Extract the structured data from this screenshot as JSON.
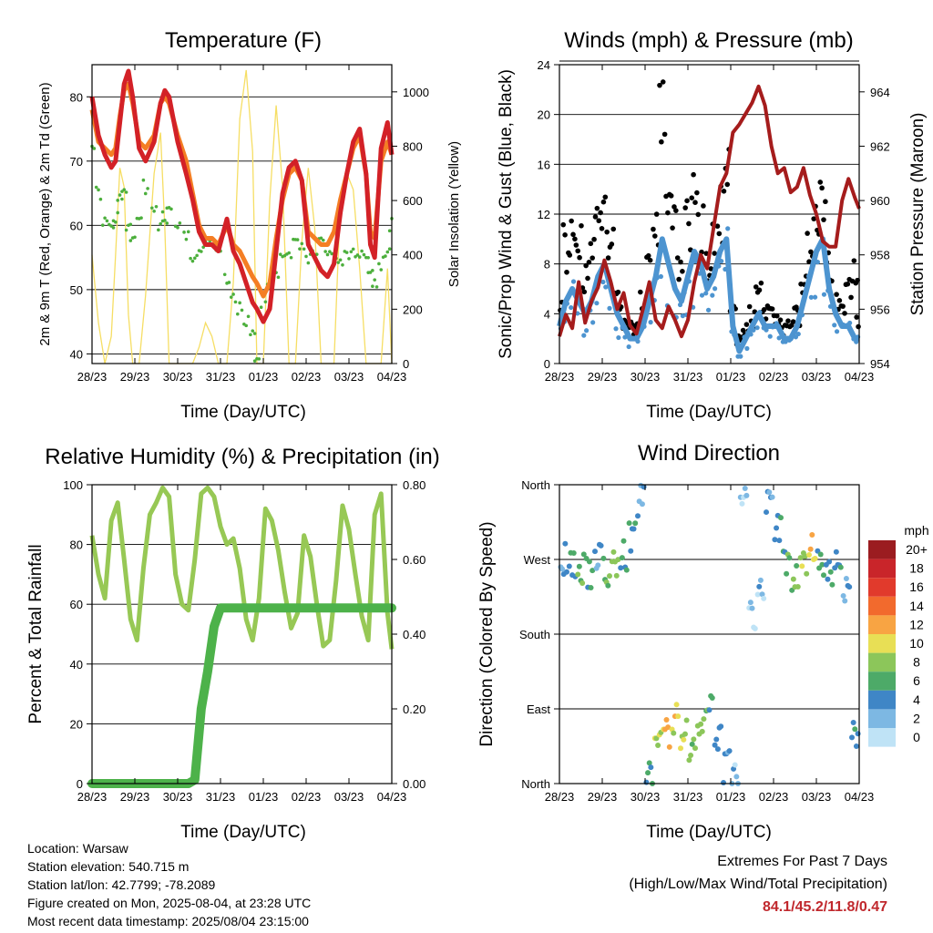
{
  "colors": {
    "temp_2m": "#d32127",
    "temp_9m": "#f47e24",
    "dewpoint": "#4caf3c",
    "solar": "#f6de64",
    "wind": "#4d94d0",
    "gust": "#000000",
    "pressure": "#a51c1c",
    "rh": "#97c855",
    "precip": "#4db24a",
    "extremes_text": "#c0282d"
  },
  "x_ticks": [
    "28/23",
    "29/23",
    "30/23",
    "31/23",
    "01/23",
    "02/23",
    "03/23",
    "04/23"
  ],
  "x_label": "Time (Day/UTC)",
  "panels": {
    "temperature": {
      "title": "Temperature (F)",
      "ylabel_left": "2m & 9m T (Red, Orange) & 2m Td (Green)",
      "ylabel_right": "Solar Insolation (Yellow)",
      "y_ticks": [
        "40",
        "50",
        "60",
        "70",
        "80"
      ],
      "y2_ticks": [
        "0",
        "200",
        "400",
        "600",
        "800",
        "1000"
      ]
    },
    "winds": {
      "title": "Winds (mph) & Pressure (mb)",
      "ylabel_left": "Sonic/Prop Wind & Gust (Blue, Black)",
      "ylabel_right": "Station Pressure (Maroon)",
      "y_ticks": [
        "0",
        "4",
        "8",
        "12",
        "16",
        "20",
        "24"
      ],
      "y2_ticks": [
        "954",
        "956",
        "958",
        "960",
        "962",
        "964"
      ]
    },
    "humidity": {
      "title": "Relative Humidity (%) & Precipitation (in)",
      "ylabel_left": "Percent & Total Rainfall",
      "y_ticks": [
        "0",
        "20",
        "40",
        "60",
        "80",
        "100"
      ],
      "y2_ticks": [
        "0.00",
        "0.20",
        "0.40",
        "0.60",
        "0.80"
      ]
    },
    "direction": {
      "title": "Wind Direction",
      "ylabel_left": "Direction (Colored By Speed)",
      "y_ticks": [
        "North",
        "East",
        "South",
        "West",
        "North"
      ],
      "legend_title": "mph",
      "legend_labels": [
        "20+",
        "18",
        "16",
        "14",
        "12",
        "10",
        "8",
        "6",
        "4",
        "2",
        "0"
      ],
      "legend_colors": [
        "#9b1c20",
        "#c9252a",
        "#e13a2c",
        "#f26a2d",
        "#f8a443",
        "#e8df55",
        "#8cc65a",
        "#4daa68",
        "#3f86c6",
        "#7db8e3",
        "#bfe3f6"
      ]
    }
  },
  "info": {
    "location": "Location: Warsaw",
    "elevation": "Station elevation: 540.715 m",
    "latlon": "Station lat/lon: 42.7799; -78.2089",
    "created": "Figure created on Mon, 2025-08-04, at 23:28 UTC",
    "timestamp": "Most recent data timestamp: 2025/08/04 23:15:00"
  },
  "extremes": {
    "title": "Extremes For Past 7 Days",
    "subtitle": "(High/Low/Max Wind/Total Precipitation)",
    "values": "84.1/45.2/11.8/0.47"
  },
  "chart_data": [
    {
      "type": "line",
      "title": "Temperature (F)",
      "xlabel": "Time (Day/UTC)",
      "ylabel": "2m & 9m T (Red, Orange) & 2m Td (Green)",
      "y2label": "Solar Insolation (Yellow)",
      "xlim": [
        0,
        7
      ],
      "ylim": [
        38.5,
        85
      ],
      "y2lim": [
        0,
        1100
      ],
      "x": [
        0,
        0.15,
        0.3,
        0.45,
        0.55,
        0.65,
        0.75,
        0.85,
        0.95,
        1.1,
        1.25,
        1.45,
        1.6,
        1.7,
        1.8,
        2.0,
        2.2,
        2.35,
        2.5,
        2.65,
        2.8,
        2.95,
        3.15,
        3.3,
        3.45,
        3.6,
        3.75,
        3.85,
        4.0,
        4.15,
        4.3,
        4.45,
        4.6,
        4.75,
        4.9,
        5.05,
        5.2,
        5.35,
        5.5,
        5.65,
        5.8,
        5.95,
        6.1,
        6.25,
        6.4,
        6.5,
        6.6,
        6.75,
        6.9,
        7.0
      ],
      "series": [
        {
          "name": "2m T",
          "values": [
            80,
            74,
            71,
            69,
            70,
            76,
            82,
            84,
            80,
            72,
            70,
            73,
            79,
            81,
            80,
            73,
            68,
            64,
            59,
            57,
            57,
            56,
            61,
            56,
            54,
            51,
            48,
            47,
            45,
            47,
            56,
            65,
            69,
            70,
            67,
            57,
            55,
            53,
            52,
            54,
            62,
            68,
            73,
            75,
            68,
            57,
            55,
            72,
            76,
            71
          ]
        },
        {
          "name": "9m T",
          "values": [
            78,
            73,
            72,
            71,
            72,
            77,
            81,
            82,
            79,
            73,
            72,
            74,
            79,
            80,
            79,
            74,
            70,
            65,
            60,
            58,
            58,
            57,
            60,
            57,
            56,
            54,
            52,
            51,
            49,
            51,
            58,
            64,
            68,
            69,
            67,
            59,
            58,
            57,
            57,
            59,
            64,
            68,
            72,
            74,
            68,
            59,
            58,
            70,
            73,
            71
          ]
        },
        {
          "name": "2m Td",
          "values": [
            73,
            65,
            61,
            60,
            61,
            64,
            65,
            60,
            58,
            61,
            66,
            62,
            60,
            61,
            62,
            60,
            58,
            55,
            55,
            57,
            57,
            56,
            52,
            49,
            47,
            45,
            43,
            40,
            48,
            51,
            53,
            55,
            56,
            58,
            57,
            55,
            55,
            57,
            56,
            55,
            54,
            55,
            56,
            56,
            55,
            52,
            51,
            54,
            56,
            60
          ]
        },
        {
          "name": "Solar",
          "values": [
            400,
            150,
            0,
            100,
            400,
            720,
            650,
            180,
            0,
            0,
            250,
            700,
            850,
            500,
            0,
            0,
            0,
            0,
            60,
            150,
            100,
            0,
            0,
            300,
            900,
            1080,
            780,
            0,
            0,
            600,
            950,
            650,
            0,
            0,
            450,
            720,
            500,
            0,
            0,
            0,
            600,
            700,
            640,
            350,
            0,
            0,
            0,
            0,
            350,
            0
          ]
        }
      ]
    },
    {
      "type": "scatter",
      "title": "Winds (mph) & Pressure (mb)",
      "xlabel": "Time (Day/UTC)",
      "ylabel": "Sonic/Prop Wind & Gust (Blue, Black)",
      "y2label": "Station Pressure (Maroon)",
      "xlim": [
        0,
        7
      ],
      "ylim": [
        0,
        24
      ],
      "y2lim": [
        954,
        965
      ],
      "x": [
        0,
        0.15,
        0.3,
        0.45,
        0.6,
        0.75,
        0.9,
        1.05,
        1.2,
        1.35,
        1.5,
        1.65,
        1.8,
        1.95,
        2.1,
        2.25,
        2.4,
        2.55,
        2.7,
        2.85,
        3.0,
        3.15,
        3.3,
        3.45,
        3.6,
        3.75,
        3.9,
        4.05,
        4.2,
        4.35,
        4.5,
        4.65,
        4.8,
        4.95,
        5.1,
        5.25,
        5.4,
        5.55,
        5.7,
        5.85,
        6.0,
        6.15,
        6.3,
        6.45,
        6.6,
        6.75,
        6.9,
        7.0
      ],
      "series": [
        {
          "name": "Wind",
          "values": [
            3,
            5,
            6,
            5,
            4,
            5,
            7,
            8,
            6,
            4,
            3,
            2,
            2,
            3,
            5,
            7,
            10,
            8,
            6,
            5,
            7,
            9,
            8,
            6,
            7,
            9,
            10,
            3,
            1,
            2,
            3,
            4,
            3,
            3,
            3,
            2,
            2,
            3,
            5,
            7,
            9,
            10,
            6,
            4,
            3,
            3,
            2,
            2
          ]
        },
        {
          "name": "Gust",
          "values": [
            6,
            10,
            12,
            10,
            7,
            9,
            12,
            14,
            10,
            6,
            4,
            3,
            3,
            5,
            8,
            12,
            20,
            15,
            11,
            8,
            12,
            14,
            12,
            9,
            10,
            13,
            15,
            6,
            2,
            3,
            4,
            6,
            5,
            5,
            4,
            3,
            3,
            4,
            7,
            10,
            12,
            13,
            9,
            6,
            5,
            6,
            8,
            4
          ]
        },
        {
          "name": "Pressure",
          "values": [
            955.0,
            955.8,
            955.3,
            957.0,
            955.5,
            956.3,
            956.8,
            957.8,
            957.0,
            956.0,
            956.6,
            955.4,
            955.1,
            956.0,
            957.0,
            955.6,
            955.3,
            956.1,
            955.6,
            955.0,
            955.6,
            957.0,
            958.0,
            957.5,
            959.0,
            960.5,
            961.0,
            962.5,
            962.8,
            963.2,
            963.6,
            964.2,
            963.5,
            962.0,
            961.0,
            961.2,
            960.3,
            960.5,
            961.2,
            960.2,
            959.5,
            958.5,
            958.3,
            958.3,
            960.0,
            960.8,
            960.1,
            959.7
          ]
        }
      ]
    },
    {
      "type": "line",
      "title": "Relative Humidity (%) & Precipitation (in)",
      "xlabel": "Time (Day/UTC)",
      "ylabel": "Percent & Total Rainfall",
      "xlim": [
        0,
        7
      ],
      "ylim": [
        0,
        100
      ],
      "y2lim": [
        0,
        0.8
      ],
      "x": [
        0,
        0.15,
        0.3,
        0.45,
        0.6,
        0.75,
        0.9,
        1.05,
        1.2,
        1.35,
        1.5,
        1.65,
        1.8,
        1.95,
        2.1,
        2.25,
        2.4,
        2.55,
        2.7,
        2.85,
        3.0,
        3.15,
        3.3,
        3.45,
        3.6,
        3.75,
        3.9,
        4.05,
        4.2,
        4.35,
        4.5,
        4.65,
        4.8,
        4.95,
        5.1,
        5.25,
        5.4,
        5.55,
        5.7,
        5.85,
        6.0,
        6.15,
        6.3,
        6.45,
        6.6,
        6.75,
        6.9,
        7.0
      ],
      "series": [
        {
          "name": "RH",
          "values": [
            83,
            70,
            62,
            88,
            94,
            75,
            55,
            48,
            72,
            90,
            94,
            99,
            96,
            70,
            60,
            58,
            75,
            97,
            99,
            96,
            86,
            80,
            82,
            72,
            55,
            48,
            62,
            92,
            88,
            78,
            64,
            52,
            57,
            83,
            76,
            60,
            46,
            48,
            68,
            93,
            85,
            70,
            56,
            48,
            90,
            97,
            57,
            45
          ]
        },
        {
          "name": "Precip",
          "values": [
            0,
            0,
            0,
            0,
            0,
            0,
            0,
            0,
            0,
            0,
            0,
            0,
            0,
            0,
            0,
            0,
            0.01,
            0.2,
            0.3,
            0.42,
            0.47,
            0.47,
            0.47,
            0.47,
            0.47,
            0.47,
            0.47,
            0.47,
            0.47,
            0.47,
            0.47,
            0.47,
            0.47,
            0.47,
            0.47,
            0.47,
            0.47,
            0.47,
            0.47,
            0.47,
            0.47,
            0.47,
            0.47,
            0.47,
            0.47,
            0.47,
            0.47,
            0.47
          ]
        }
      ]
    },
    {
      "type": "scatter",
      "title": "Wind Direction",
      "xlabel": "Time (Day/UTC)",
      "ylabel": "Direction (Colored By Speed)",
      "xlim": [
        0,
        7
      ],
      "ylim": [
        0,
        360
      ],
      "x": [
        0.1,
        0.3,
        0.5,
        0.7,
        0.9,
        1.1,
        1.3,
        1.5,
        1.7,
        1.9,
        2.1,
        2.3,
        2.5,
        2.7,
        2.9,
        3.1,
        3.3,
        3.5,
        3.7,
        3.9,
        4.1,
        4.3,
        4.5,
        4.7,
        4.9,
        5.1,
        5.3,
        5.5,
        5.7,
        5.9,
        6.1,
        6.3,
        6.5,
        6.7,
        6.9
      ],
      "series": [
        {
          "name": "Direction",
          "values": [
            270,
            265,
            260,
            255,
            275,
            255,
            260,
            275,
            300,
            340,
            10,
            45,
            60,
            80,
            60,
            40,
            70,
            90,
            60,
            20,
            5,
            340,
            200,
            240,
            340,
            310,
            260,
            250,
            260,
            280,
            270,
            250,
            260,
            240,
            60
          ]
        },
        {
          "name": "Speed",
          "values": [
            3,
            5,
            6,
            5,
            4,
            7,
            8,
            5,
            4,
            3,
            5,
            9,
            12,
            10,
            8,
            7,
            8,
            6,
            4,
            3,
            2,
            1,
            1,
            2,
            3,
            4,
            6,
            7,
            9,
            10,
            6,
            5,
            4,
            3,
            4
          ]
        }
      ]
    }
  ]
}
